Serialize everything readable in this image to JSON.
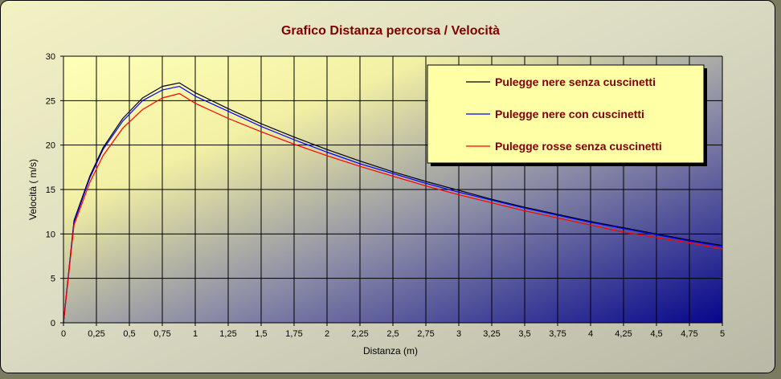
{
  "chart_data": {
    "type": "line",
    "title": "Grafico Distanza percorsa / Velocità",
    "xlabel": "Distanza (m)",
    "ylabel": "Velocità ( m/s)",
    "xlim": [
      0,
      5
    ],
    "ylim": [
      0,
      30
    ],
    "xticks": [
      "0",
      "0,25",
      "0,5",
      "0,75",
      "1",
      "1,25",
      "1,5",
      "1,75",
      "2",
      "2,25",
      "2,5",
      "2,75",
      "3",
      "3,25",
      "3,5",
      "3,75",
      "4",
      "4,25",
      "4,5",
      "4,75",
      "5"
    ],
    "yticks": [
      "0",
      "5",
      "10",
      "15",
      "20",
      "25",
      "30"
    ],
    "grid": true,
    "legend_position": "top-right",
    "series": [
      {
        "name": "Pulegge nere senza cuscinetti",
        "color": "#000000",
        "x": [
          0,
          0.08,
          0.2,
          0.3,
          0.45,
          0.6,
          0.75,
          0.88,
          1.0,
          1.25,
          1.5,
          1.75,
          2.0,
          2.25,
          2.5,
          2.75,
          3.0,
          3.25,
          3.5,
          3.75,
          4.0,
          4.25,
          4.5,
          4.75,
          5.0
        ],
        "y": [
          0,
          11.5,
          16.5,
          19.7,
          23.0,
          25.3,
          26.6,
          27.0,
          25.9,
          24.1,
          22.4,
          20.9,
          19.5,
          18.2,
          17.0,
          15.9,
          14.9,
          13.9,
          13.0,
          12.2,
          11.4,
          10.7,
          10.0,
          9.3,
          8.7
        ]
      },
      {
        "name": "Pulegge nere con cuscinetti",
        "color": "#0000ff",
        "x": [
          0,
          0.08,
          0.2,
          0.3,
          0.45,
          0.6,
          0.75,
          0.88,
          1.0,
          1.25,
          1.5,
          1.75,
          2.0,
          2.25,
          2.5,
          2.75,
          3.0,
          3.25,
          3.5,
          3.75,
          4.0,
          4.25,
          4.5,
          4.75,
          5.0
        ],
        "y": [
          0,
          11.3,
          16.3,
          19.5,
          22.7,
          25.0,
          26.2,
          26.6,
          25.5,
          23.8,
          22.1,
          20.6,
          19.2,
          17.9,
          16.8,
          15.7,
          14.7,
          13.8,
          12.9,
          12.1,
          11.3,
          10.6,
          9.9,
          9.2,
          8.6
        ]
      },
      {
        "name": "Pulegge rosse senza cuscinetti",
        "color": "#ff0000",
        "x": [
          0,
          0.08,
          0.2,
          0.3,
          0.45,
          0.6,
          0.75,
          0.88,
          1.0,
          1.25,
          1.5,
          1.75,
          2.0,
          2.25,
          2.5,
          2.75,
          3.0,
          3.25,
          3.5,
          3.75,
          4.0,
          4.25,
          4.5,
          4.75,
          5.0
        ],
        "y": [
          0,
          11.0,
          15.8,
          18.8,
          21.9,
          24.0,
          25.3,
          25.8,
          24.7,
          23.0,
          21.5,
          20.1,
          18.8,
          17.6,
          16.5,
          15.4,
          14.4,
          13.5,
          12.6,
          11.8,
          11.0,
          10.2,
          9.6,
          9.0,
          8.3
        ]
      }
    ]
  }
}
